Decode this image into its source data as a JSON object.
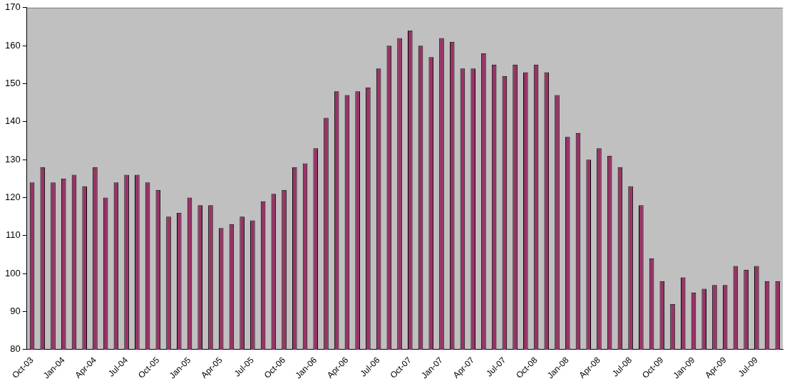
{
  "chart_data": {
    "type": "bar",
    "categories": [
      "Oct-03",
      null,
      null,
      "Jan-04",
      null,
      null,
      "Apr-04",
      null,
      null,
      "Jul-04",
      null,
      null,
      "Oct-05",
      null,
      null,
      "Jan-05",
      null,
      null,
      "Apr-05",
      null,
      null,
      "Jul-05",
      null,
      null,
      "Oct-06",
      null,
      null,
      "Jan-06",
      null,
      null,
      "Apr-06",
      null,
      null,
      "Jul-06",
      null,
      null,
      "Oct-07",
      null,
      null,
      "Jan-07",
      null,
      null,
      "Apr-07",
      null,
      null,
      "Jul-07",
      null,
      null,
      "Oct-08",
      null,
      null,
      "Jan-08",
      null,
      null,
      "Apr-08",
      null,
      null,
      "Jul-08",
      null,
      null,
      "Oct-09",
      null,
      null,
      "Jan-09",
      null,
      null,
      "Apr-09",
      null,
      null,
      "Jul-09",
      null,
      null
    ],
    "values": [
      124,
      128,
      124,
      125,
      126,
      123,
      128,
      120,
      124,
      126,
      126,
      124,
      122,
      115,
      116,
      120,
      118,
      118,
      112,
      113,
      115,
      114,
      119,
      121,
      122,
      128,
      129,
      133,
      141,
      148,
      147,
      148,
      149,
      154,
      160,
      162,
      164,
      160,
      157,
      162,
      161,
      154,
      154,
      158,
      155,
      152,
      155,
      153,
      155,
      153,
      147,
      136,
      137,
      130,
      133,
      131,
      128,
      123,
      118,
      104,
      98,
      92,
      99,
      95,
      96,
      97,
      97,
      102,
      101,
      102,
      98,
      98
    ],
    "color": "#993366",
    "ylim": [
      80,
      170
    ],
    "yticks": [
      80,
      90,
      100,
      110,
      120,
      130,
      140,
      150,
      160,
      170
    ],
    "grid": false,
    "legend": false
  }
}
